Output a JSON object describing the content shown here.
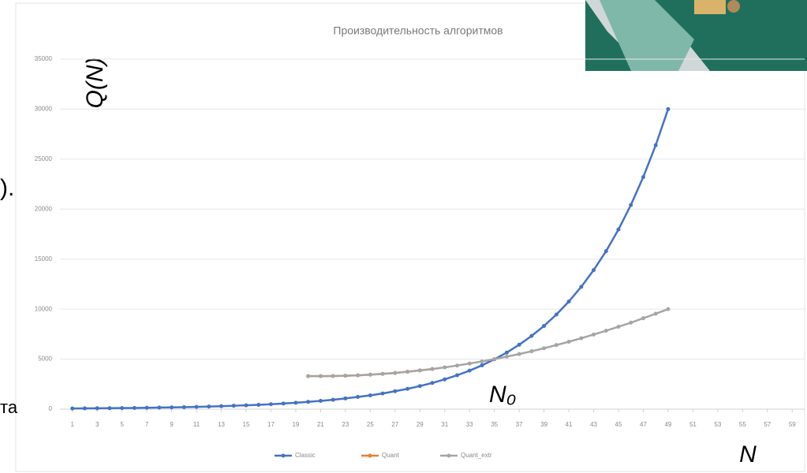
{
  "chart_data": {
    "type": "line",
    "title": "Производительность алгоритмов",
    "x_label": "N",
    "y_label": "Q(N)",
    "annotations": [
      "N₀",
      ").",
      "та"
    ],
    "xlim": [
      0,
      60
    ],
    "xticks": [
      1,
      3,
      5,
      7,
      9,
      11,
      13,
      15,
      17,
      19,
      21,
      23,
      25,
      27,
      29,
      31,
      33,
      35,
      37,
      39,
      41,
      43,
      45,
      47,
      49,
      51,
      53,
      55,
      57,
      59
    ],
    "ylim": [
      0,
      35000
    ],
    "yticks": [
      0,
      5000,
      10000,
      15000,
      20000,
      25000,
      30000,
      35000
    ],
    "grid": true,
    "legend": "bottom",
    "series": [
      {
        "name": "Classic",
        "color": "#4472c4",
        "x": [
          1,
          2,
          3,
          4,
          5,
          6,
          7,
          8,
          9,
          10,
          11,
          12,
          13,
          14,
          15,
          16,
          17,
          18,
          19,
          20,
          21,
          22,
          23,
          24,
          25,
          26,
          27,
          28,
          29,
          30,
          31,
          32,
          33,
          34,
          35,
          36,
          37,
          38,
          39,
          40,
          41,
          42,
          43,
          44,
          45,
          46,
          47,
          48,
          49
        ],
        "values": [
          65,
          75,
          85,
          95,
          110,
          120,
          140,
          160,
          180,
          200,
          230,
          260,
          300,
          340,
          380,
          430,
          490,
          560,
          640,
          730,
          830,
          940,
          1070,
          1220,
          1380,
          1570,
          1790,
          2030,
          2310,
          2620,
          2980,
          3390,
          3850,
          4380,
          4980,
          5660,
          6440,
          7320,
          8320,
          9460,
          10760,
          12230,
          13900,
          15800,
          17960,
          20420,
          23210,
          26390,
          30000
        ]
      },
      {
        "name": "Quant",
        "color": "#ed7d31",
        "x": [
          20,
          21,
          22,
          23,
          24,
          25,
          26,
          27,
          28,
          29,
          30
        ],
        "values": [
          3300,
          3300,
          3310,
          3340,
          3380,
          3450,
          3530,
          3620,
          3740,
          3870,
          4010
        ]
      },
      {
        "name": "Quant_extr",
        "color": "#a5a5a5",
        "x": [
          20,
          21,
          22,
          23,
          24,
          25,
          26,
          27,
          28,
          29,
          30,
          31,
          32,
          33,
          34,
          35,
          36,
          37,
          38,
          39,
          40,
          41,
          42,
          43,
          44,
          45,
          46,
          47,
          48,
          49
        ],
        "values": [
          3300,
          3300,
          3310,
          3340,
          3380,
          3450,
          3530,
          3620,
          3740,
          3870,
          4010,
          4180,
          4360,
          4560,
          4770,
          5000,
          5250,
          5510,
          5790,
          6090,
          6410,
          6740,
          7090,
          7460,
          7840,
          8240,
          8650,
          9090,
          9540,
          10000
        ]
      }
    ]
  }
}
